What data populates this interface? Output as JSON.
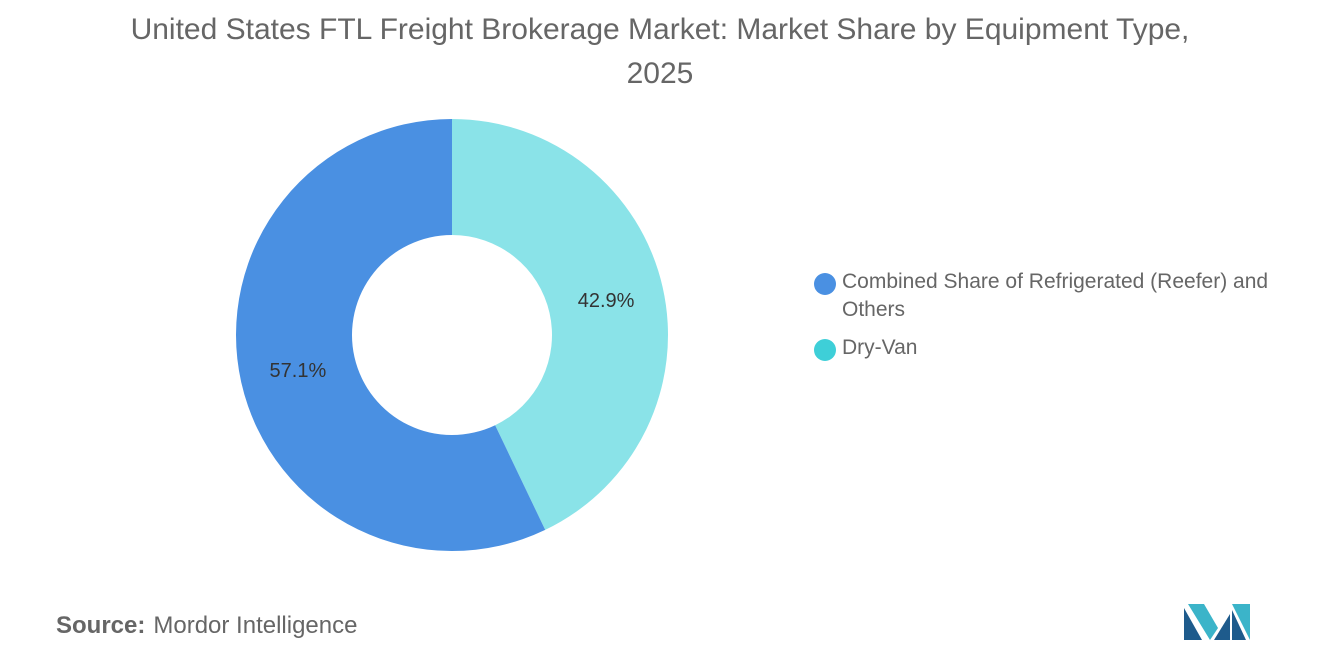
{
  "header": {
    "title": "United States FTL Freight Brokerage Market: Market Share by Equipment Type, 2025"
  },
  "chart_data": {
    "type": "pie",
    "donut": true,
    "title": "United States FTL Freight Brokerage Market: Market Share by Equipment Type, 2025",
    "legend_position": "right",
    "series": [
      {
        "name": "Dry-Van",
        "value": 42.9,
        "label": "42.9%",
        "color": "#8ae3e8"
      },
      {
        "name": "Combined Share of Refrigerated (Reefer) and Others",
        "value": 57.1,
        "label": "57.1%",
        "color": "#4a90e2"
      }
    ]
  },
  "legend": {
    "items": [
      {
        "label": "Combined Share of Refrigerated (Reefer) and Others",
        "color": "#4a90e2"
      },
      {
        "label": "Dry-Van",
        "color": "#3ecfd8"
      }
    ]
  },
  "footer": {
    "source_label": "Source:",
    "source_value": "Mordor Intelligence"
  },
  "logo": {
    "icon": "mordor-intelligence-logo-icon",
    "colors": [
      "#1e5b8c",
      "#3bb4c9"
    ]
  }
}
